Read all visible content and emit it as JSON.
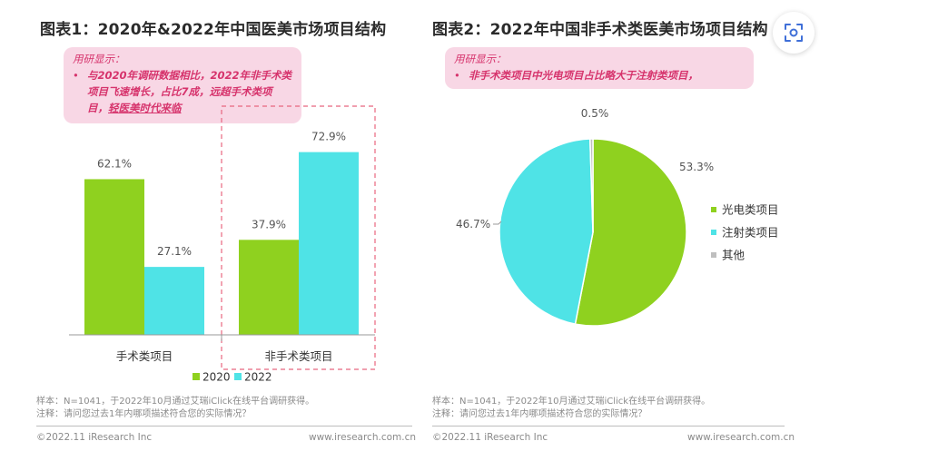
{
  "left_panel": {
    "title": "图表1：2020年&2022年中国医美市场项目结构",
    "callout": {
      "heading": "用研显示：",
      "bullet": "•",
      "text_main": "与2020年调研数据相比，2022年非手术类项目飞速增长，占比7成，远超手术类项目，",
      "text_emph": "轻医美时代来临"
    },
    "note_sample": "样本：N=1041，于2022年10月通过艾瑞iClick在线平台调研获得。",
    "note_remark": "注释：请问您过去1年内哪项描述符合您的实际情况？",
    "footer_left": "©2022.11 iResearch Inc",
    "footer_right": "www.iresearch.com.cn"
  },
  "right_panel": {
    "title": "图表2：2022年中国非手术类医美市场项目结构",
    "callout": {
      "heading": "用研显示：",
      "bullet": "•",
      "text": "非手术类项目中光电项目占比略大于注射类项目，"
    },
    "note_sample": "样本：N=1041，于2022年10月通过艾瑞iClick在线平台调研获得。",
    "note_remark": "注释：请问您过去1年内哪项描述符合您的实际情况？",
    "footer_left": "©2022.11 iResearch Inc",
    "footer_right": "www.iresearch.com.cn"
  },
  "scan_icon": "scan-icon",
  "chart_data": [
    {
      "type": "bar",
      "categories": [
        "手术类项目",
        "非手术类项目"
      ],
      "series": [
        {
          "name": "2020",
          "values": [
            62.1,
            37.9
          ],
          "labels": [
            "62.1%",
            "37.9%"
          ],
          "color": "#8fd11f"
        },
        {
          "name": "2022",
          "values": [
            27.1,
            72.9
          ],
          "labels": [
            "27.1%",
            "72.9%"
          ],
          "color": "#4fe3e6"
        }
      ],
      "ylim": [
        0,
        80
      ],
      "grid": false,
      "legend": "bottom-center",
      "highlight_category": "非手术类项目"
    },
    {
      "type": "pie",
      "slices": [
        {
          "name": "光电类项目",
          "value": 53.3,
          "label": "53.3%",
          "color": "#8fd11f"
        },
        {
          "name": "注射类项目",
          "value": 46.7,
          "label": "46.7%",
          "color": "#4fe3e6"
        },
        {
          "name": "其他",
          "value": 0.5,
          "label": "0.5%",
          "color": "#bfbfbf"
        }
      ],
      "legend": "right"
    }
  ]
}
